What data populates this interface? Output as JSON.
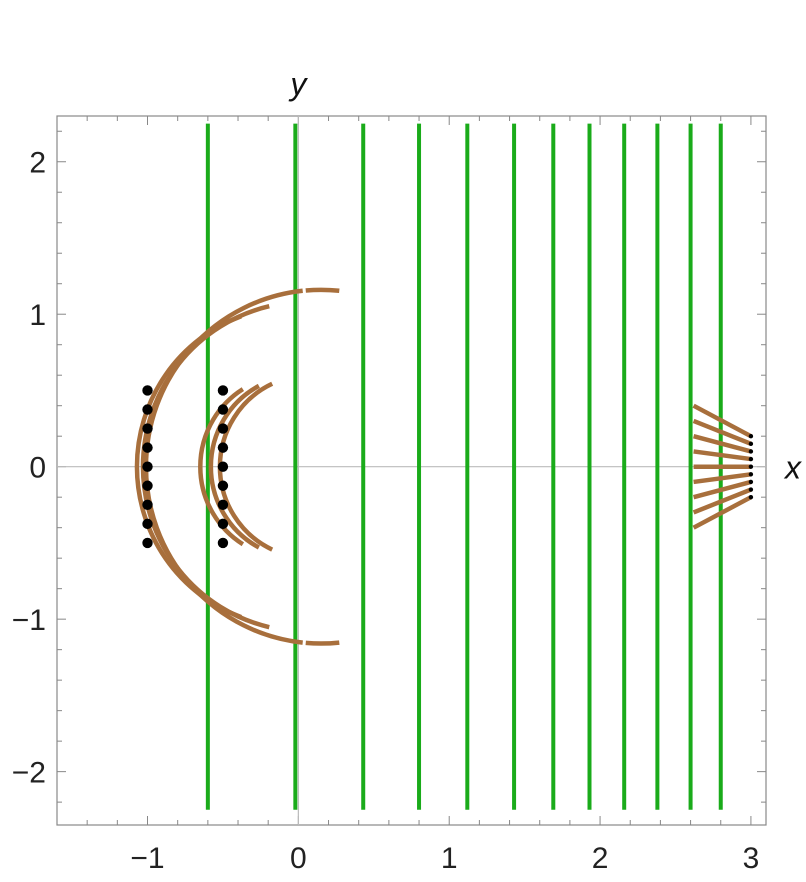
{
  "chart_data": {
    "type": "line",
    "xlabel": "x",
    "ylabel": "y",
    "xlim": [
      -1.6,
      3.1
    ],
    "ylim": [
      -2.35,
      2.3
    ],
    "grid": false,
    "frame": true,
    "colors": {
      "vertical_lines": "#1aab1a",
      "arcs": "#a86f3c",
      "points": "#000000",
      "axes": "#bbbbbb",
      "frame": "#888888"
    },
    "x_ticks": [
      {
        "value": -1,
        "label": "−1"
      },
      {
        "value": 0,
        "label": "0"
      },
      {
        "value": 1,
        "label": "1"
      },
      {
        "value": 2,
        "label": "2"
      },
      {
        "value": 3,
        "label": "3"
      }
    ],
    "y_ticks": [
      {
        "value": 2,
        "label": "2"
      },
      {
        "value": 1,
        "label": "1"
      },
      {
        "value": 0,
        "label": "0"
      },
      {
        "value": -1,
        "label": "−1"
      },
      {
        "value": -2,
        "label": "−2"
      }
    ],
    "vertical_lines": {
      "y_range": [
        -2.25,
        2.25
      ],
      "x": [
        -0.6,
        -0.02,
        0.43,
        0.8,
        1.12,
        1.43,
        1.69,
        1.93,
        2.16,
        2.38,
        2.6,
        2.8
      ]
    },
    "arcs": [
      {
        "cx": 0.15,
        "cy": 0,
        "r": 1.16,
        "a0": 96,
        "a1": 264
      },
      {
        "cx": 0.15,
        "cy": 0,
        "r": 1.16,
        "a0": -95,
        "a1": -84
      },
      {
        "cx": 0.15,
        "cy": 0,
        "r": 1.16,
        "a0": 84,
        "a1": 95
      },
      {
        "cx": 0.05,
        "cy": 0,
        "r": 1.08,
        "a0": 103,
        "a1": 257
      },
      {
        "cx": -0.02,
        "cy": 0,
        "r": 1.05,
        "a0": 110,
        "a1": 250
      },
      {
        "cx": 0.08,
        "cy": 0,
        "r": 0.6,
        "a0": 115,
        "a1": 245
      },
      {
        "cx": 0.02,
        "cy": 0,
        "r": 0.6,
        "a0": 118,
        "a1": 242
      },
      {
        "cx": -0.05,
        "cy": 0,
        "r": 0.6,
        "a0": 122,
        "a1": 238
      }
    ],
    "fan_lines": [
      {
        "x1": 2.62,
        "y1": 0.4,
        "x2": 3.0,
        "y2": 0.2
      },
      {
        "x1": 2.62,
        "y1": 0.3,
        "x2": 3.0,
        "y2": 0.15
      },
      {
        "x1": 2.62,
        "y1": 0.2,
        "x2": 3.0,
        "y2": 0.1
      },
      {
        "x1": 2.62,
        "y1": 0.1,
        "x2": 3.0,
        "y2": 0.05
      },
      {
        "x1": 2.62,
        "y1": 0.0,
        "x2": 3.0,
        "y2": 0.0
      },
      {
        "x1": 2.62,
        "y1": -0.1,
        "x2": 3.0,
        "y2": -0.05
      },
      {
        "x1": 2.62,
        "y1": -0.2,
        "x2": 3.0,
        "y2": -0.1
      },
      {
        "x1": 2.62,
        "y1": -0.3,
        "x2": 3.0,
        "y2": -0.15
      },
      {
        "x1": 2.62,
        "y1": -0.4,
        "x2": 3.0,
        "y2": -0.2
      }
    ],
    "points": [
      {
        "x": -1.0,
        "y": 0.5,
        "size": "large"
      },
      {
        "x": -1.0,
        "y": 0.375,
        "size": "large"
      },
      {
        "x": -1.0,
        "y": 0.25,
        "size": "large"
      },
      {
        "x": -1.0,
        "y": 0.125,
        "size": "large"
      },
      {
        "x": -1.0,
        "y": 0.0,
        "size": "large"
      },
      {
        "x": -1.0,
        "y": -0.125,
        "size": "large"
      },
      {
        "x": -1.0,
        "y": -0.25,
        "size": "large"
      },
      {
        "x": -1.0,
        "y": -0.375,
        "size": "large"
      },
      {
        "x": -1.0,
        "y": -0.5,
        "size": "large"
      },
      {
        "x": -0.5,
        "y": 0.5,
        "size": "large"
      },
      {
        "x": -0.5,
        "y": 0.375,
        "size": "large"
      },
      {
        "x": -0.5,
        "y": 0.25,
        "size": "large"
      },
      {
        "x": -0.5,
        "y": 0.125,
        "size": "large"
      },
      {
        "x": -0.5,
        "y": 0.0,
        "size": "large"
      },
      {
        "x": -0.5,
        "y": -0.125,
        "size": "large"
      },
      {
        "x": -0.5,
        "y": -0.25,
        "size": "large"
      },
      {
        "x": -0.5,
        "y": -0.375,
        "size": "large"
      },
      {
        "x": -0.5,
        "y": -0.5,
        "size": "large"
      },
      {
        "x": 3.0,
        "y": 0.2,
        "size": "small"
      },
      {
        "x": 3.0,
        "y": 0.15,
        "size": "small"
      },
      {
        "x": 3.0,
        "y": 0.1,
        "size": "small"
      },
      {
        "x": 3.0,
        "y": 0.05,
        "size": "small"
      },
      {
        "x": 3.0,
        "y": 0.0,
        "size": "small"
      },
      {
        "x": 3.0,
        "y": -0.05,
        "size": "small"
      },
      {
        "x": 3.0,
        "y": -0.1,
        "size": "small"
      },
      {
        "x": 3.0,
        "y": -0.15,
        "size": "small"
      },
      {
        "x": 3.0,
        "y": -0.2,
        "size": "small"
      }
    ]
  }
}
